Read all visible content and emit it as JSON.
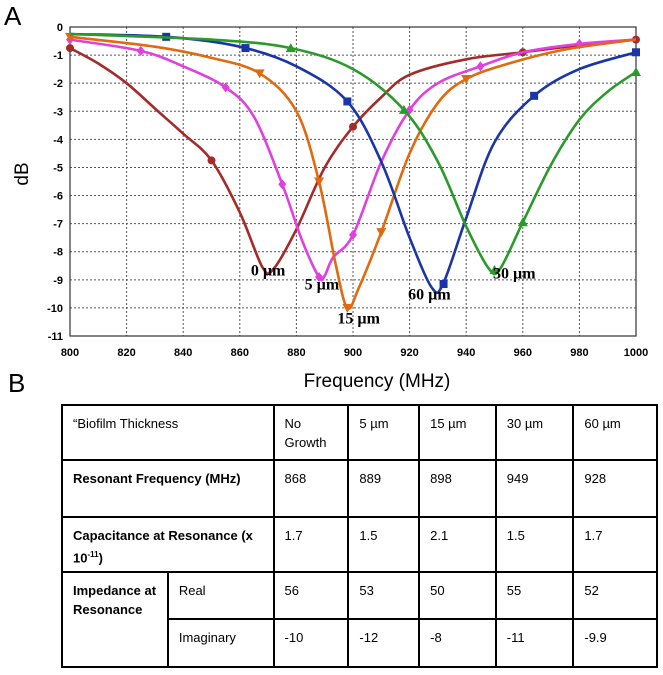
{
  "panel_labels": {
    "a": "A",
    "b": "B"
  },
  "chart_data": {
    "type": "line",
    "xlabel": "Frequency (MHz)",
    "ylabel": "dB",
    "xlim": [
      800,
      1000
    ],
    "ylim": [
      -11,
      0
    ],
    "x_ticks": [
      800,
      820,
      840,
      860,
      880,
      900,
      920,
      940,
      960,
      980,
      1000
    ],
    "y_ticks": [
      0,
      -1,
      -2,
      -3,
      -4,
      -5,
      -6,
      -7,
      -8,
      -9,
      -10,
      -11
    ],
    "grid": true,
    "series": [
      {
        "name": "0 µm",
        "color": "#a52a2a",
        "marker": "circle",
        "points": [
          [
            800,
            -0.75
          ],
          [
            810,
            -1.3
          ],
          [
            820,
            -2.0
          ],
          [
            830,
            -2.9
          ],
          [
            840,
            -3.8
          ],
          [
            850,
            -4.75
          ],
          [
            860,
            -6.6
          ],
          [
            868,
            -8.55
          ],
          [
            872,
            -8.6
          ],
          [
            880,
            -7.2
          ],
          [
            890,
            -5.0
          ],
          [
            900,
            -3.55
          ],
          [
            910,
            -2.5
          ],
          [
            920,
            -1.7
          ],
          [
            940,
            -1.15
          ],
          [
            960,
            -0.9
          ],
          [
            980,
            -0.65
          ],
          [
            1000,
            -0.45
          ]
        ],
        "markers": [
          [
            800,
            -0.75
          ],
          [
            850,
            -4.75
          ],
          [
            900,
            -3.55
          ],
          [
            960,
            -0.9
          ],
          [
            1000,
            -0.45
          ]
        ]
      },
      {
        "name": "5 µm",
        "color": "#e040e0",
        "marker": "diamond",
        "points": [
          [
            800,
            -0.45
          ],
          [
            825,
            -0.85
          ],
          [
            840,
            -1.4
          ],
          [
            855,
            -2.15
          ],
          [
            865,
            -3.2
          ],
          [
            875,
            -5.6
          ],
          [
            882,
            -7.6
          ],
          [
            888,
            -8.9
          ],
          [
            890,
            -8.85
          ],
          [
            893,
            -8.2
          ],
          [
            900,
            -7.4
          ],
          [
            910,
            -4.8
          ],
          [
            920,
            -2.95
          ],
          [
            930,
            -2.0
          ],
          [
            945,
            -1.4
          ],
          [
            960,
            -0.9
          ],
          [
            980,
            -0.6
          ],
          [
            1000,
            -0.45
          ]
        ],
        "markers": [
          [
            800,
            -0.45
          ],
          [
            825,
            -0.85
          ],
          [
            855,
            -2.15
          ],
          [
            875,
            -5.6
          ],
          [
            888,
            -8.9
          ],
          [
            900,
            -7.4
          ],
          [
            920,
            -2.95
          ],
          [
            945,
            -1.4
          ],
          [
            980,
            -0.6
          ]
        ]
      },
      {
        "name": "15 µm",
        "color": "#e06a10",
        "marker": "triangle-down",
        "points": [
          [
            800,
            -0.35
          ],
          [
            830,
            -0.7
          ],
          [
            850,
            -1.1
          ],
          [
            867,
            -1.65
          ],
          [
            880,
            -3.0
          ],
          [
            888,
            -5.5
          ],
          [
            894,
            -8.5
          ],
          [
            898,
            -10.0
          ],
          [
            902,
            -9.3
          ],
          [
            910,
            -7.3
          ],
          [
            920,
            -4.5
          ],
          [
            930,
            -2.7
          ],
          [
            940,
            -1.85
          ],
          [
            955,
            -1.3
          ],
          [
            975,
            -0.8
          ],
          [
            1000,
            -0.45
          ]
        ],
        "markers": [
          [
            800,
            -0.35
          ],
          [
            867,
            -1.65
          ],
          [
            888,
            -5.5
          ],
          [
            898,
            -10.0
          ],
          [
            910,
            -7.3
          ],
          [
            940,
            -1.85
          ]
        ]
      },
      {
        "name": "60 µm",
        "color": "#1a35a8",
        "marker": "square",
        "points": [
          [
            800,
            -0.25
          ],
          [
            834,
            -0.35
          ],
          [
            860,
            -0.7
          ],
          [
            880,
            -1.4
          ],
          [
            898,
            -2.65
          ],
          [
            910,
            -4.8
          ],
          [
            920,
            -7.5
          ],
          [
            928,
            -9.3
          ],
          [
            932,
            -9.1
          ],
          [
            940,
            -6.8
          ],
          [
            950,
            -4.1
          ],
          [
            964,
            -2.45
          ],
          [
            980,
            -1.5
          ],
          [
            1000,
            -0.9
          ]
        ],
        "markers": [
          [
            834,
            -0.35
          ],
          [
            862,
            -0.75
          ],
          [
            898,
            -2.65
          ],
          [
            932,
            -9.15
          ],
          [
            964,
            -2.45
          ],
          [
            1000,
            -0.9
          ]
        ]
      },
      {
        "name": "30 µm",
        "color": "#2a9a2a",
        "marker": "triangle-up",
        "points": [
          [
            800,
            -0.25
          ],
          [
            850,
            -0.45
          ],
          [
            878,
            -0.75
          ],
          [
            900,
            -1.5
          ],
          [
            918,
            -2.95
          ],
          [
            930,
            -4.8
          ],
          [
            940,
            -7.1
          ],
          [
            948,
            -8.6
          ],
          [
            952,
            -8.6
          ],
          [
            960,
            -6.95
          ],
          [
            970,
            -4.9
          ],
          [
            980,
            -3.3
          ],
          [
            990,
            -2.3
          ],
          [
            1000,
            -1.6
          ]
        ],
        "markers": [
          [
            878,
            -0.75
          ],
          [
            918,
            -2.95
          ],
          [
            950,
            -8.65
          ],
          [
            960,
            -6.95
          ],
          [
            1000,
            -1.6
          ]
        ]
      }
    ],
    "annotations": [
      {
        "text": "0 µm",
        "x": 870,
        "y": -8.85
      },
      {
        "text": "5 µm",
        "x": 889,
        "y": -9.35
      },
      {
        "text": "15 µm",
        "x": 902,
        "y": -10.55
      },
      {
        "text": "60 µm",
        "x": 927,
        "y": -9.7
      },
      {
        "text": "30 µm",
        "x": 957,
        "y": -8.95
      }
    ]
  },
  "table": {
    "header": {
      "label": "“Biofilm Thickness",
      "cols": [
        "No Growth",
        "5 µm",
        "15 µm",
        "30 µm",
        "60 µm"
      ]
    },
    "rows": {
      "resonant_frequency": {
        "label": "Resonant Frequency (MHz)",
        "values": [
          "868",
          "889",
          "898",
          "949",
          "928"
        ]
      },
      "capacitance": {
        "label": "Capacitance at Resonance (x 10",
        "exponent": "-11",
        "label_end": ")",
        "values": [
          "1.7",
          "1.5",
          "2.1",
          "1.5",
          "1.7"
        ]
      },
      "impedance": {
        "label": "Impedance at Resonance",
        "real": {
          "label": "Real",
          "values": [
            "56",
            "53",
            "50",
            "55",
            "52"
          ]
        },
        "imaginary": {
          "label": "Imaginary",
          "values": [
            "-10",
            "-12",
            "-8",
            "-11",
            "-9.9"
          ]
        }
      }
    }
  }
}
